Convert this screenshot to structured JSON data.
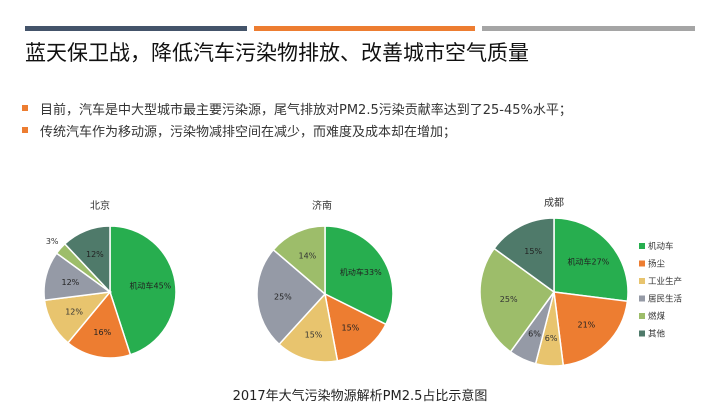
{
  "slide": {
    "title": "蓝天保卫战，降低汽车污染物排放、改善城市空气质量",
    "bullets": [
      "目前，汽车是中大型城市最主要污染源，尾气排放对PM2.5污染贡献率达到了25-45%水平；",
      "传统汽车作为移动源，污染物减排空间在减少，而难度及成本却在增加；"
    ],
    "caption": "2017年大气污染物源解析PM2.5占比示意图"
  },
  "colors": {
    "bar1": "#44546a",
    "bar2": "#ed7d31",
    "bar3": "#a5a5a5",
    "bullet": "#ed7d31"
  },
  "chart_data": [
    {
      "type": "pie",
      "title": "北京",
      "slices": [
        {
          "label": "机动车45%",
          "name": "机动车",
          "value": 45,
          "color": "#27ae4f"
        },
        {
          "label": "16%",
          "name": "扬尘",
          "value": 16,
          "color": "#ed7d31"
        },
        {
          "label": "12%",
          "name": "工业生产",
          "value": 12,
          "color": "#e8c46e"
        },
        {
          "label": "12%",
          "name": "居民生活",
          "value": 12,
          "color": "#959aa6"
        },
        {
          "label": "3%",
          "name": "燃煤",
          "value": 3,
          "color": "#9dbd6a"
        },
        {
          "label": "12%",
          "name": "其他",
          "value": 12,
          "color": "#4f7a6a"
        }
      ]
    },
    {
      "type": "pie",
      "title": "济南",
      "slices": [
        {
          "label": "机动车33%",
          "name": "机动车",
          "value": 33,
          "color": "#27ae4f"
        },
        {
          "label": "15%",
          "name": "扬尘",
          "value": 15,
          "color": "#ed7d31"
        },
        {
          "label": "15%",
          "name": "工业生产",
          "value": 15,
          "color": "#e8c46e"
        },
        {
          "label": "25%",
          "name": "居民生活",
          "value": 25,
          "color": "#959aa6"
        },
        {
          "label": "14%",
          "name": "燃煤",
          "value": 14,
          "color": "#9dbd6a"
        }
      ]
    },
    {
      "type": "pie",
      "title": "成都",
      "slices": [
        {
          "label": "机动车27%",
          "name": "机动车",
          "value": 27,
          "color": "#27ae4f"
        },
        {
          "label": "21%",
          "name": "扬尘",
          "value": 21,
          "color": "#ed7d31"
        },
        {
          "label": "6%",
          "name": "工业生产",
          "value": 6,
          "color": "#e8c46e"
        },
        {
          "label": "6%",
          "name": "居民生活",
          "value": 6,
          "color": "#959aa6"
        },
        {
          "label": "25%",
          "name": "燃煤",
          "value": 25,
          "color": "#9dbd6a"
        },
        {
          "label": "15%",
          "name": "其他",
          "value": 15,
          "color": "#4f7a6a"
        }
      ]
    }
  ],
  "legend": {
    "placement": "right",
    "items": [
      {
        "label": "机动车",
        "color": "#27ae4f"
      },
      {
        "label": "扬尘",
        "color": "#ed7d31"
      },
      {
        "label": "工业生产",
        "color": "#e8c46e"
      },
      {
        "label": "居民生活",
        "color": "#959aa6"
      },
      {
        "label": "燃煤",
        "color": "#9dbd6a"
      },
      {
        "label": "其他",
        "color": "#4f7a6a"
      }
    ]
  }
}
